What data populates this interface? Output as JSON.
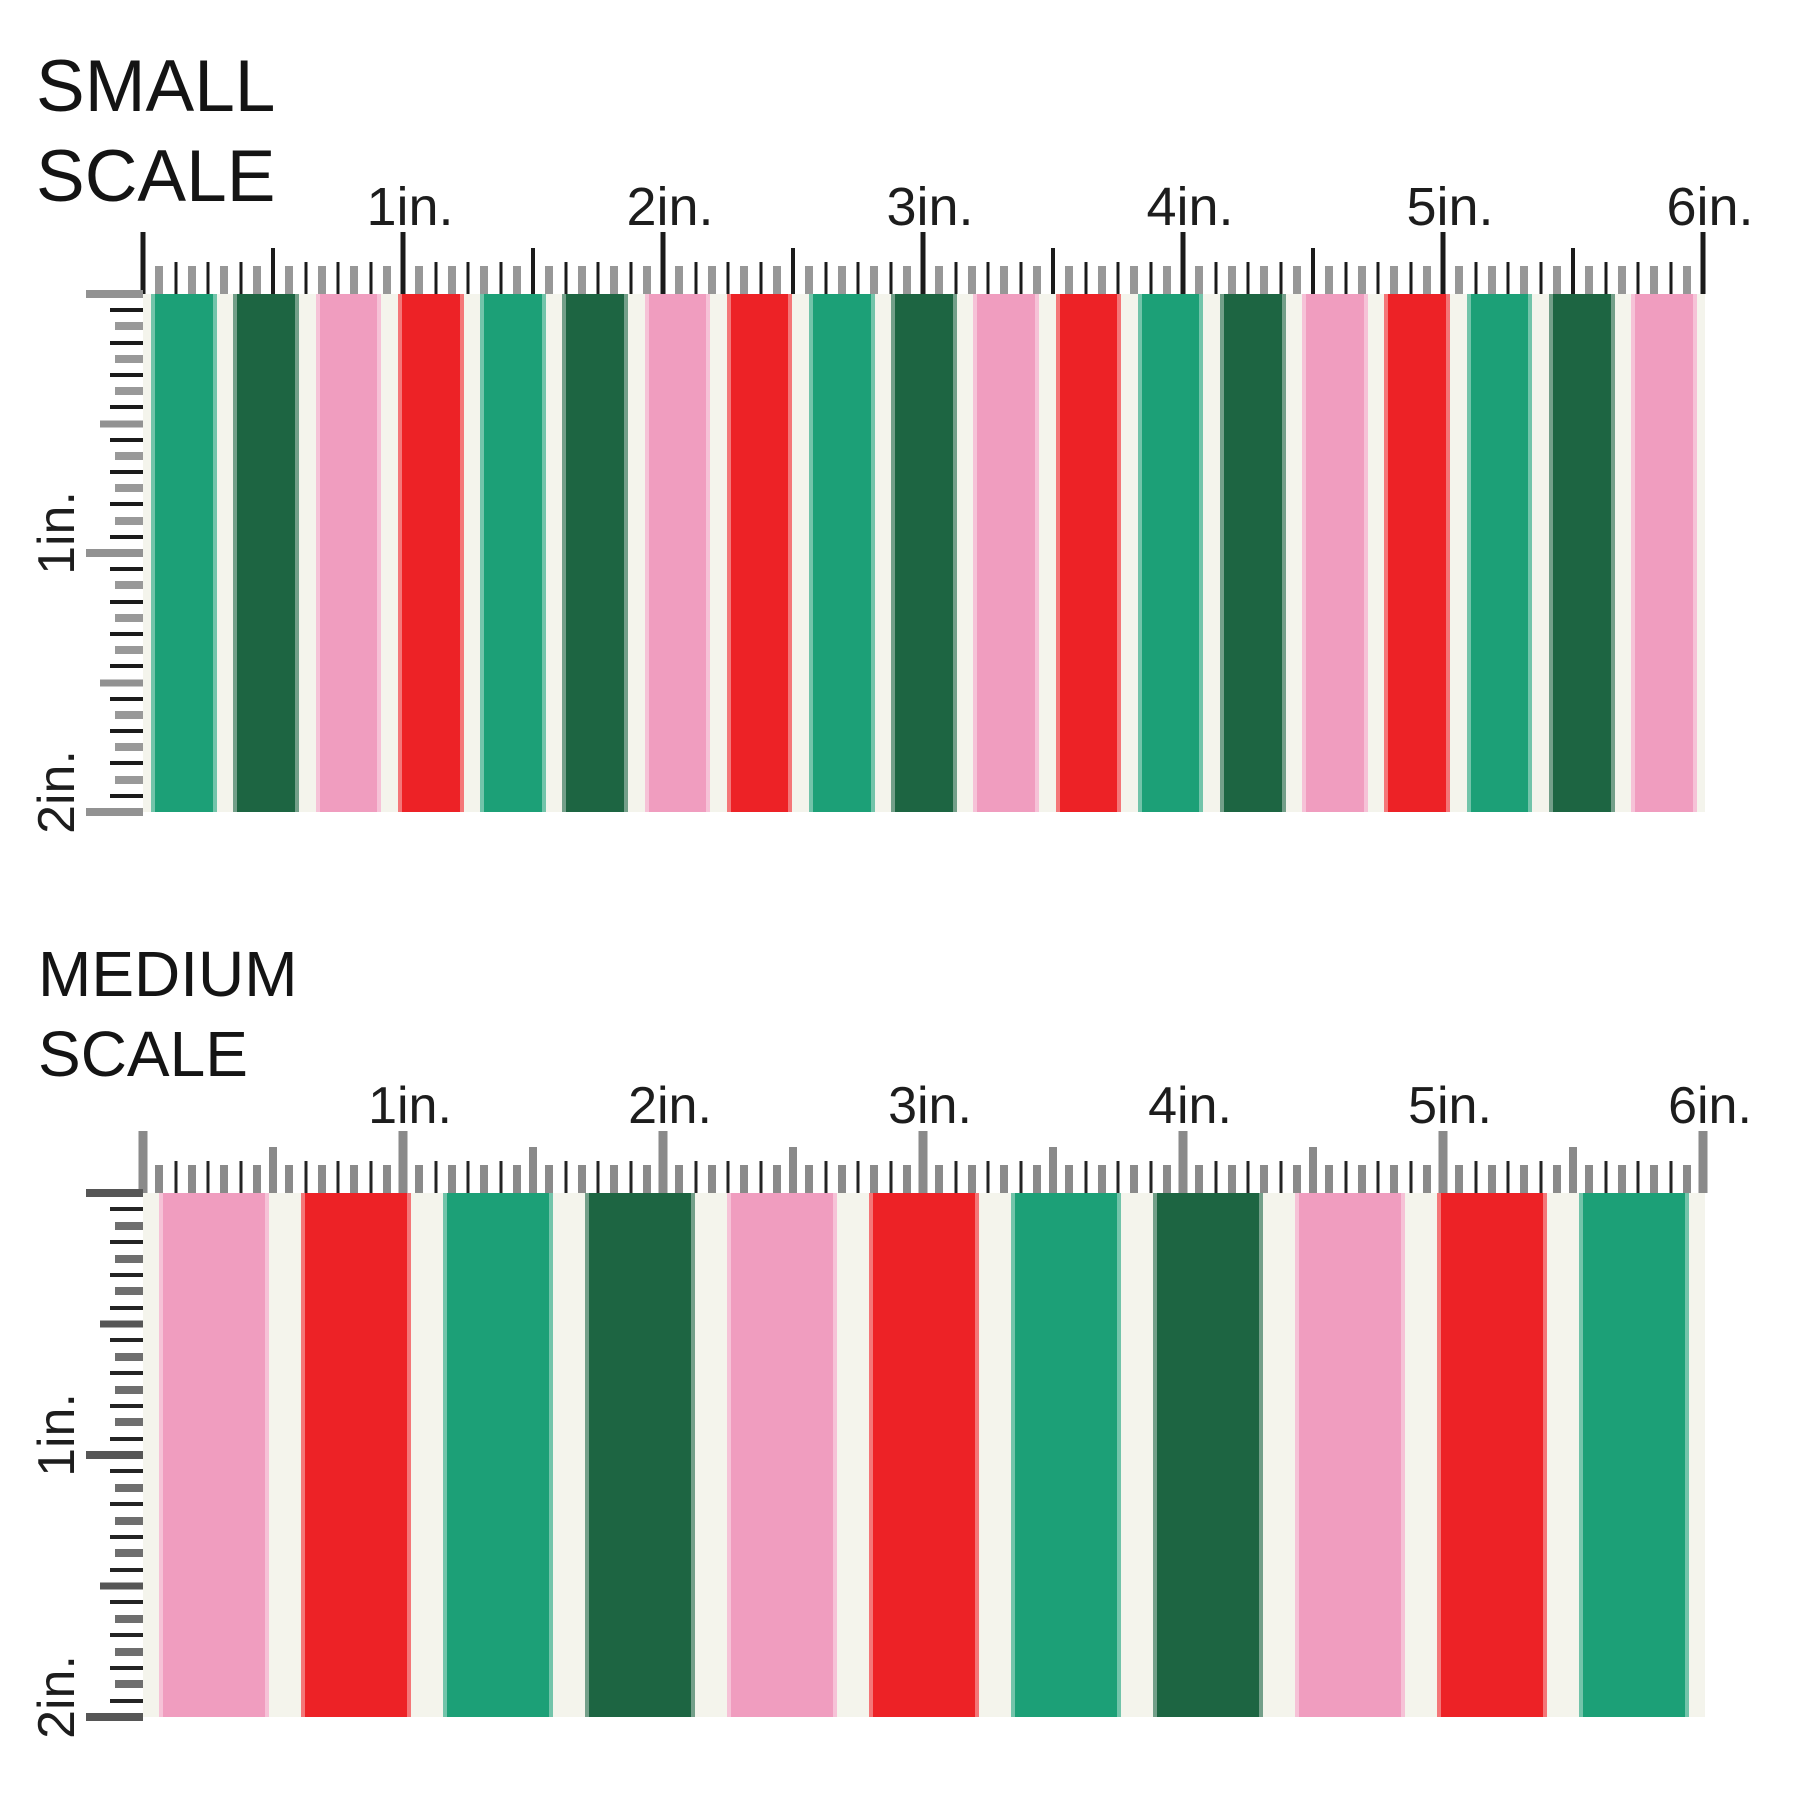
{
  "colors": {
    "green": "#1CA077",
    "dark_green": "#1D6542",
    "pink": "#F09DBF",
    "red": "#ED2226",
    "cream": "#F4F4EC"
  },
  "panels": [
    {
      "title_lines": [
        "SMALL",
        "SCALE"
      ],
      "ruler_horizontal_labels": [
        "1in.",
        "2in.",
        "3in.",
        "4in.",
        "5in.",
        "6in."
      ],
      "ruler_vertical_labels": [
        "1in.",
        "2in."
      ],
      "stripe_sequence": [
        "green",
        "dark_green",
        "pink",
        "red",
        "green",
        "dark_green",
        "pink",
        "red",
        "green",
        "dark_green",
        "pink",
        "red",
        "green",
        "dark_green",
        "pink",
        "red",
        "green",
        "dark_green",
        "pink"
      ]
    },
    {
      "title_lines": [
        "MEDIUM",
        "SCALE"
      ],
      "ruler_horizontal_labels": [
        "1in.",
        "2in.",
        "3in.",
        "4in.",
        "5in.",
        "6in."
      ],
      "ruler_vertical_labels": [
        "1in.",
        "2in."
      ],
      "stripe_sequence": [
        "pink",
        "red",
        "green",
        "dark_green",
        "pink",
        "red",
        "green",
        "dark_green",
        "pink",
        "red",
        "green"
      ]
    }
  ]
}
